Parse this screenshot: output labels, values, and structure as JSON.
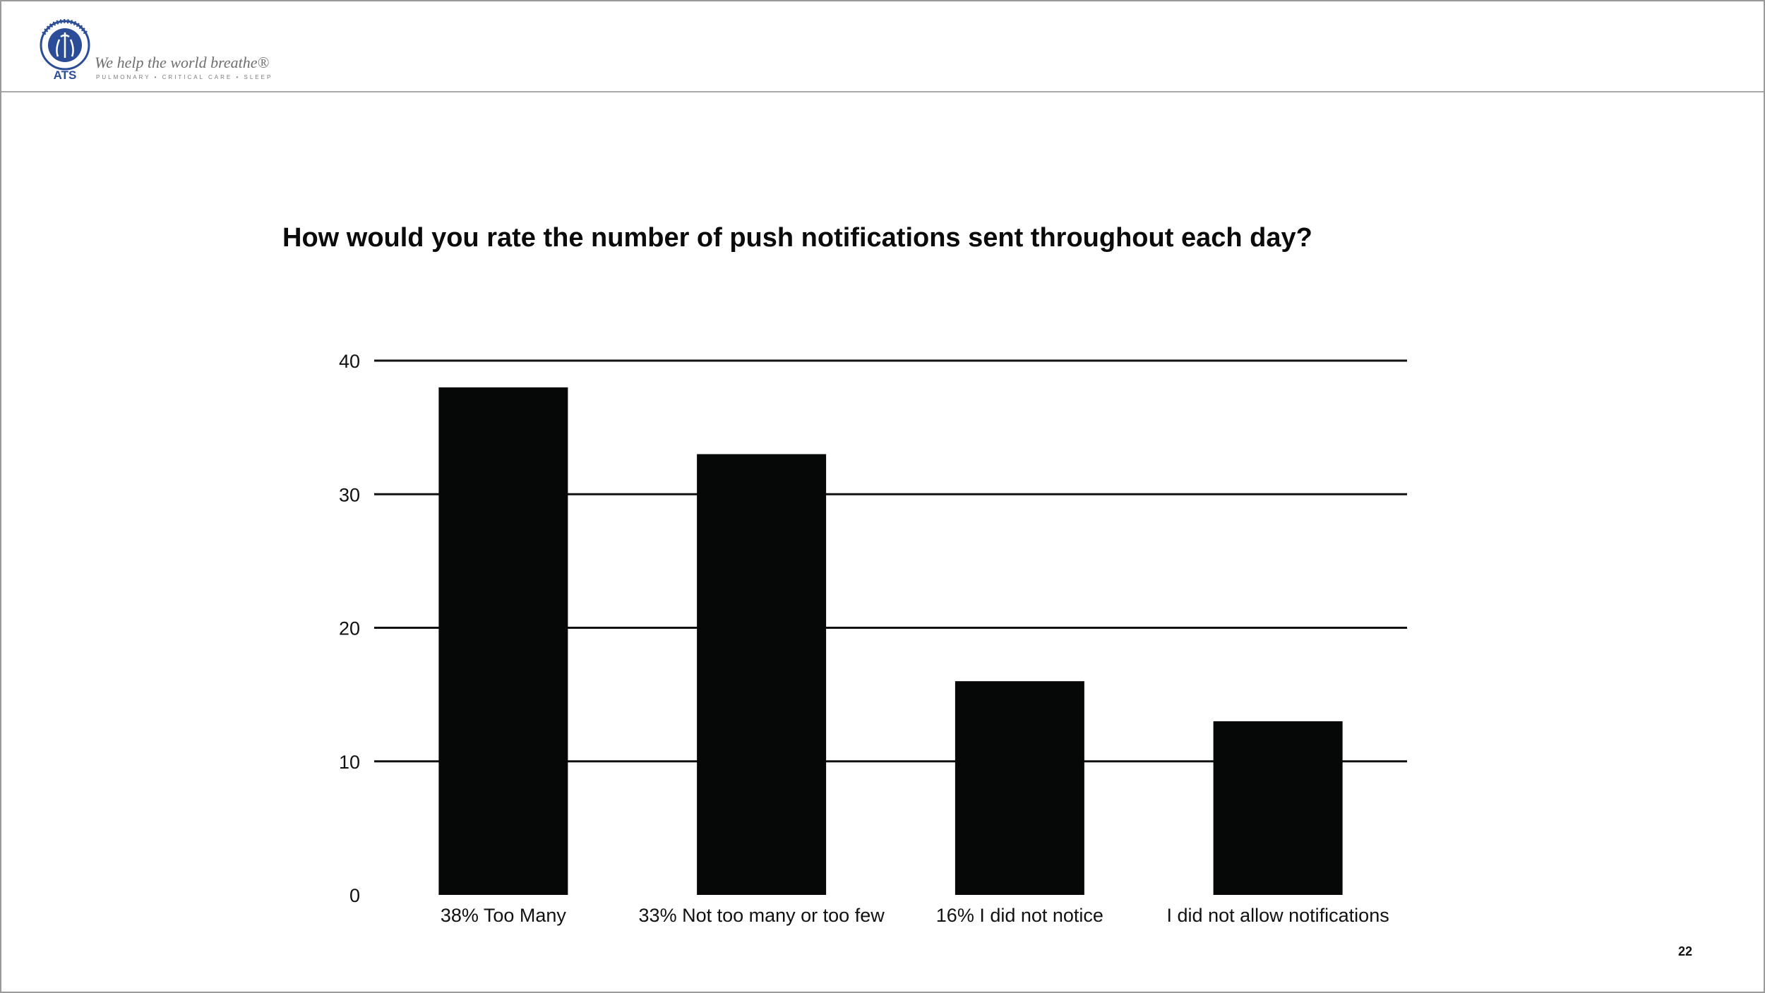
{
  "header": {
    "logo_text": "ATS",
    "logo_ring_text": "AMERICAN THORACIC SOCIETY",
    "logo_year": "1905",
    "tagline": "We help the world breathe®",
    "subtagline": "PULMONARY • CRITICAL CARE • SLEEP"
  },
  "colors": {
    "bar": "#060808",
    "gridline": "#111111",
    "logo_blue": "#2b4c97"
  },
  "chart_data": {
    "type": "bar",
    "title": "How would you rate the number of push notifications sent throughout each day?",
    "categories": [
      "38% Too Many",
      "33% Not too many or too few",
      "16% I did not notice",
      "I did not allow notifications"
    ],
    "values": [
      38,
      33,
      16,
      13
    ],
    "xlabel": "",
    "ylabel": "",
    "ylim": [
      0,
      40
    ],
    "yticks": [
      0,
      10,
      20,
      30,
      40
    ],
    "grid": true,
    "legend": "none"
  },
  "footer": {
    "page_number": "22"
  }
}
